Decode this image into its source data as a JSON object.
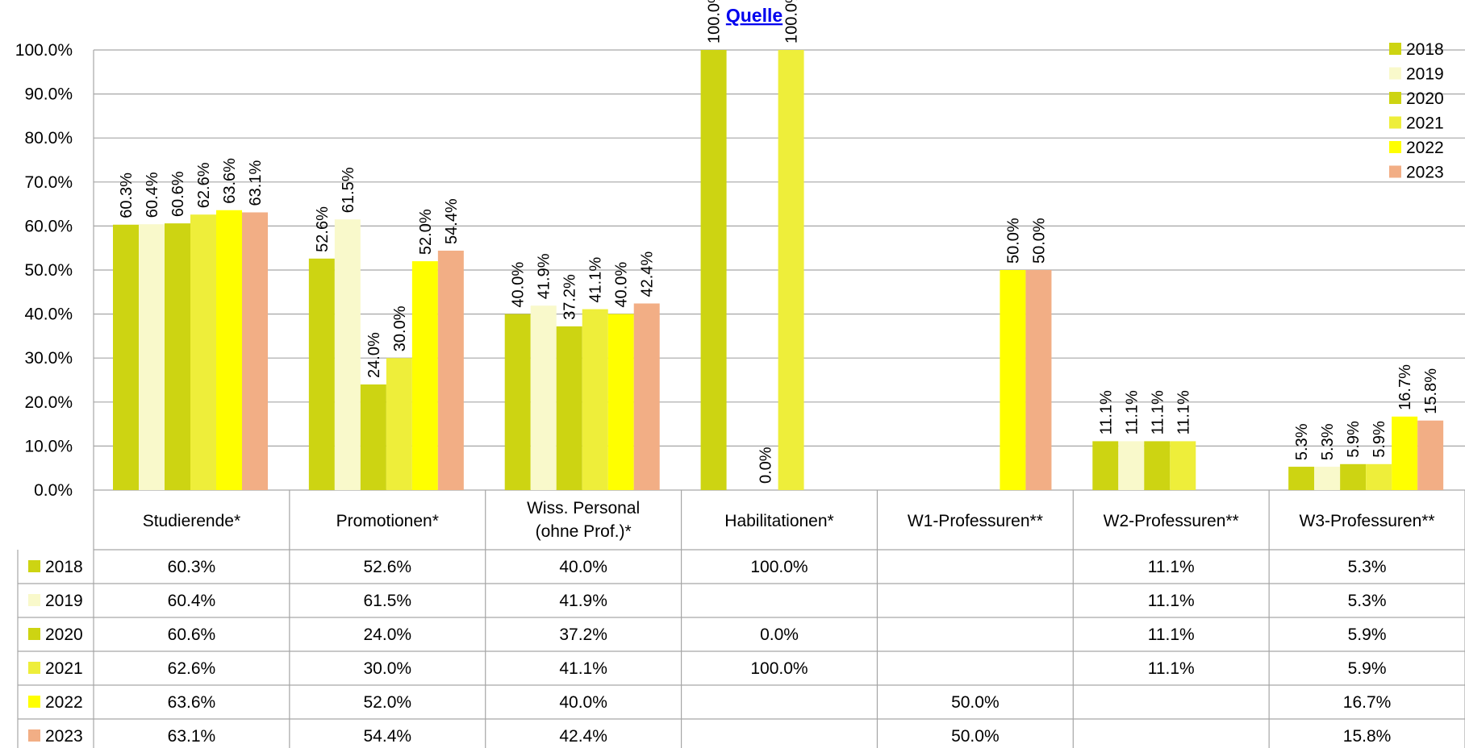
{
  "title_link": "Quelle",
  "colors": {
    "2018": "#cdd412",
    "2019": "#f9f9cb",
    "2020": "#cdd412",
    "2021": "#eeee3a",
    "2022": "#ffff00",
    "2023": "#f2ae85",
    "grid": "#a6a6a6"
  },
  "chart_data": {
    "type": "bar",
    "title": "Quelle",
    "ylim": [
      0,
      100
    ],
    "y_ticks": [
      "0.0%",
      "10.0%",
      "20.0%",
      "30.0%",
      "40.0%",
      "50.0%",
      "60.0%",
      "70.0%",
      "80.0%",
      "90.0%",
      "100.0%"
    ],
    "grid": true,
    "legend_position": "top-right",
    "categories": [
      {
        "line1": "Studierende*",
        "line2": ""
      },
      {
        "line1": "Promotionen*",
        "line2": ""
      },
      {
        "line1": "Wiss. Personal",
        "line2": "(ohne Prof.)*"
      },
      {
        "line1": "Habilitationen*",
        "line2": ""
      },
      {
        "line1": "W1-Professuren**",
        "line2": ""
      },
      {
        "line1": "W2-Professuren**",
        "line2": ""
      },
      {
        "line1": "W3-Professuren**",
        "line2": ""
      }
    ],
    "series": [
      {
        "name": "2018",
        "values": [
          60.3,
          52.6,
          40.0,
          100.0,
          null,
          11.1,
          5.3
        ],
        "labels": [
          "60.3%",
          "52.6%",
          "40.0%",
          "100.0%",
          "",
          "11.1%",
          "5.3%"
        ]
      },
      {
        "name": "2019",
        "values": [
          60.4,
          61.5,
          41.9,
          null,
          null,
          11.1,
          5.3
        ],
        "labels": [
          "60.4%",
          "61.5%",
          "41.9%",
          "",
          "",
          "11.1%",
          "5.3%"
        ]
      },
      {
        "name": "2020",
        "values": [
          60.6,
          24.0,
          37.2,
          0.0,
          null,
          11.1,
          5.9
        ],
        "labels": [
          "60.6%",
          "24.0%",
          "37.2%",
          "0.0%",
          "",
          "11.1%",
          "5.9%"
        ]
      },
      {
        "name": "2021",
        "values": [
          62.6,
          30.0,
          41.1,
          100.0,
          null,
          11.1,
          5.9
        ],
        "labels": [
          "62.6%",
          "30.0%",
          "41.1%",
          "100.0%",
          "",
          "11.1%",
          "5.9%"
        ]
      },
      {
        "name": "2022",
        "values": [
          63.6,
          52.0,
          40.0,
          null,
          50.0,
          null,
          16.7
        ],
        "labels": [
          "63.6%",
          "52.0%",
          "40.0%",
          "",
          "50.0%",
          "",
          "16.7%"
        ]
      },
      {
        "name": "2023",
        "values": [
          63.1,
          54.4,
          42.4,
          null,
          50.0,
          null,
          15.8
        ],
        "labels": [
          "63.1%",
          "54.4%",
          "42.4%",
          "",
          "50.0%",
          "",
          "15.8%"
        ]
      }
    ]
  }
}
